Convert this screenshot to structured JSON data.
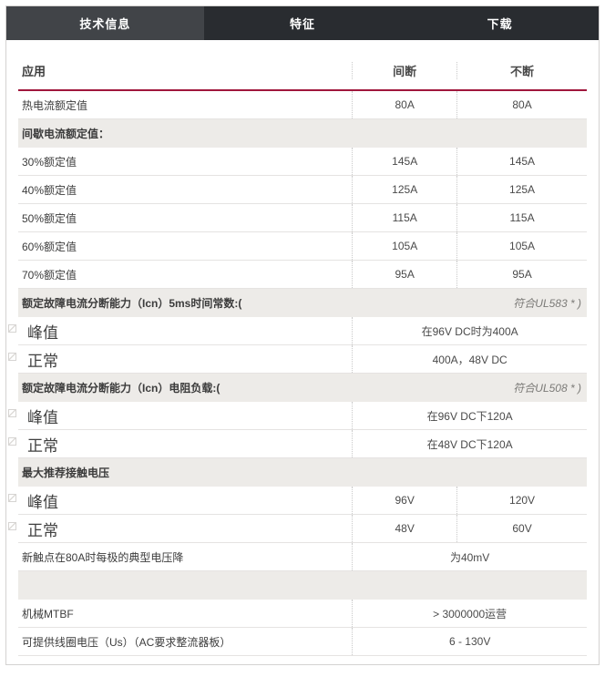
{
  "tabs": [
    {
      "label": "技术信息",
      "active": true
    },
    {
      "label": "特征",
      "active": false
    },
    {
      "label": "下载",
      "active": false
    }
  ],
  "colors": {
    "accent_red": "#a0173c",
    "tabbar_bg": "#292c30",
    "active_tab_bg": "#414448",
    "section_bg": "#edebe8"
  },
  "table": {
    "header": {
      "col1": "应用",
      "col2": "间断",
      "col3": "不断"
    },
    "rows": [
      {
        "type": "data",
        "label": "热电流额定值",
        "v1": "80A",
        "v2": "80A"
      },
      {
        "type": "section",
        "label": "间歇电流额定值：",
        "note": ""
      },
      {
        "type": "data",
        "label": "30%额定值",
        "v1": "145A",
        "v2": "145A"
      },
      {
        "type": "data",
        "label": "40%额定值",
        "v1": "125A",
        "v2": "125A"
      },
      {
        "type": "data",
        "label": "50%额定值",
        "v1": "115A",
        "v2": "115A"
      },
      {
        "type": "data",
        "label": "60%额定值",
        "v1": "105A",
        "v2": "105A"
      },
      {
        "type": "data",
        "label": "70%额定值",
        "v1": "95A",
        "v2": "95A"
      },
      {
        "type": "section",
        "label": "额定故障电流分断能力（Icn）5ms时间常数:(",
        "note": "符合UL583 * )"
      },
      {
        "type": "data",
        "large": true,
        "icon": true,
        "label": "峰值",
        "span": "在96V DC时为400A"
      },
      {
        "type": "data",
        "large": true,
        "icon": true,
        "label": "正常",
        "span": "400A，48V DC"
      },
      {
        "type": "section",
        "label": "额定故障电流分断能力（Icn）电阻负载:(",
        "note": "符合UL508 * )"
      },
      {
        "type": "data",
        "large": true,
        "icon": true,
        "label": "峰值",
        "span": "在96V DC下120A"
      },
      {
        "type": "data",
        "large": true,
        "icon": true,
        "label": "正常",
        "span": "在48V DC下120A"
      },
      {
        "type": "section",
        "label": "最大推荐接触电压",
        "note": ""
      },
      {
        "type": "data",
        "large": true,
        "icon": true,
        "label": "峰值",
        "v1": "96V",
        "v2": "120V"
      },
      {
        "type": "data",
        "large": true,
        "icon": true,
        "label": "正常",
        "v1": "48V",
        "v2": "60V"
      },
      {
        "type": "data",
        "label": "新触点在80A时每极的典型电压降",
        "span": "为40mV"
      },
      {
        "type": "section",
        "label": "",
        "note": ""
      },
      {
        "type": "data",
        "label": "机械MTBF",
        "span": "> 3000000运营"
      },
      {
        "type": "data",
        "label": "可提供线圈电压（Us）（AC要求整流器板）",
        "span": "6 - 130V"
      }
    ]
  }
}
